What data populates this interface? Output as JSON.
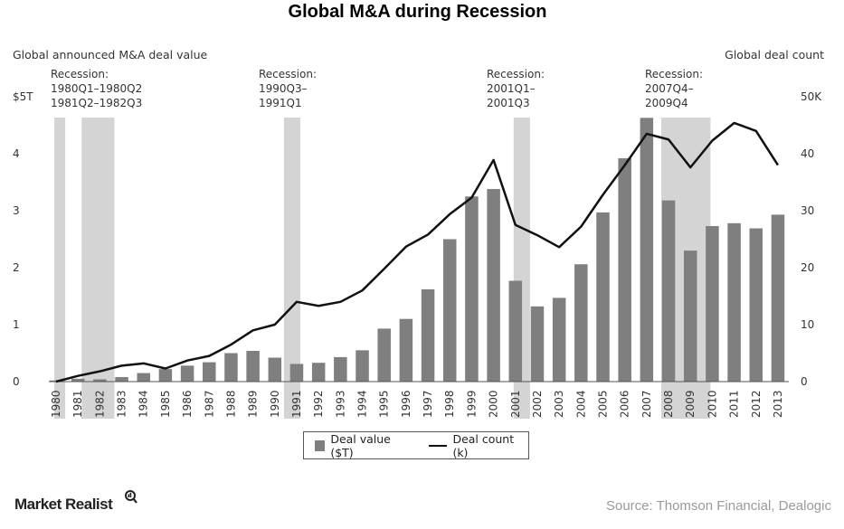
{
  "chart_data": {
    "type": "bar",
    "title": "Global M&A during Recession",
    "ylabel_left": "Global announced M&A deal value",
    "ylabel_right": "Global deal count",
    "categories": [
      "1980",
      "1981",
      "1982",
      "1983",
      "1984",
      "1985",
      "1986",
      "1987",
      "1988",
      "1989",
      "1990",
      "1991",
      "1992",
      "1993",
      "1994",
      "1995",
      "1996",
      "1997",
      "1998",
      "1999",
      "2000",
      "2001",
      "2002",
      "2003",
      "2004",
      "2005",
      "2006",
      "2007",
      "2008",
      "2009",
      "2010",
      "2011",
      "2012",
      "2013"
    ],
    "left_axis": {
      "ylim": [
        0,
        5
      ],
      "ticks": [
        "0",
        "1",
        "2",
        "3",
        "4",
        "$5T"
      ]
    },
    "right_axis": {
      "ylim": [
        0,
        50
      ],
      "ticks": [
        "0",
        "10",
        "20",
        "30",
        "40",
        "50K"
      ]
    },
    "series": [
      {
        "name": "Deal value ($T)",
        "type": "bar",
        "axis": "left",
        "color": "#7f7f7f",
        "values": [
          0.02,
          0.05,
          0.04,
          0.08,
          0.15,
          0.22,
          0.28,
          0.34,
          0.5,
          0.54,
          0.42,
          0.31,
          0.33,
          0.43,
          0.55,
          0.93,
          1.1,
          1.62,
          2.5,
          3.25,
          3.38,
          1.77,
          1.32,
          1.47,
          2.06,
          2.97,
          3.92,
          4.63,
          3.18,
          2.3,
          2.73,
          2.78,
          2.69,
          2.93
        ]
      },
      {
        "name": "Deal count (k)",
        "type": "line",
        "axis": "right",
        "color": "#111111",
        "values": [
          0,
          1.0,
          1.8,
          2.8,
          3.2,
          2.3,
          3.7,
          4.5,
          6.5,
          9.0,
          10.0,
          14.0,
          13.3,
          14.0,
          16.0,
          19.8,
          23.7,
          25.8,
          29.4,
          32.3,
          38.9,
          27.5,
          25.7,
          23.6,
          27.2,
          32.8,
          38.0,
          43.5,
          42.5,
          37.6,
          42.3,
          45.4,
          44.0,
          38.0
        ]
      }
    ],
    "recessions": [
      {
        "label_lines": [
          "Recession:",
          "1980Q1–1980Q2",
          "1981Q2–1982Q3"
        ],
        "periods": [
          [
            1980.0,
            1980.5
          ],
          [
            1981.25,
            1982.75
          ]
        ]
      },
      {
        "label_lines": [
          "Recession:",
          "1990Q3–",
          "1991Q1"
        ],
        "periods": [
          [
            1990.5,
            1991.25
          ]
        ]
      },
      {
        "label_lines": [
          "Recession:",
          "2001Q1–",
          "2001Q3"
        ],
        "periods": [
          [
            2001.0,
            2001.75
          ]
        ]
      },
      {
        "label_lines": [
          "Recession:",
          "2007Q4–",
          "2009Q4"
        ],
        "periods": [
          [
            2007.75,
            2010.0
          ]
        ]
      }
    ],
    "colors": {
      "bars": "#7f7f7f",
      "line": "#111111",
      "recession_shade": "#d4d4d4"
    }
  },
  "legend": {
    "bar_label": "Deal value ($T)",
    "line_label": "Deal count (k)"
  },
  "brand": {
    "name": "Market Realist"
  },
  "source": "Source: Thomson Financial, Dealogic"
}
